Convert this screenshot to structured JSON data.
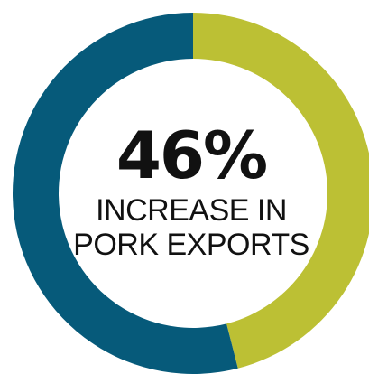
{
  "chart_data": {
    "type": "pie",
    "style": "donut",
    "slices": [
      {
        "value": 46,
        "color": "#bcc034"
      },
      {
        "value": 54,
        "color": "#065a7a"
      }
    ],
    "center_text": {
      "value": "46%",
      "line1": "INCREASE IN",
      "line2": "PORK EXPORTS"
    }
  }
}
